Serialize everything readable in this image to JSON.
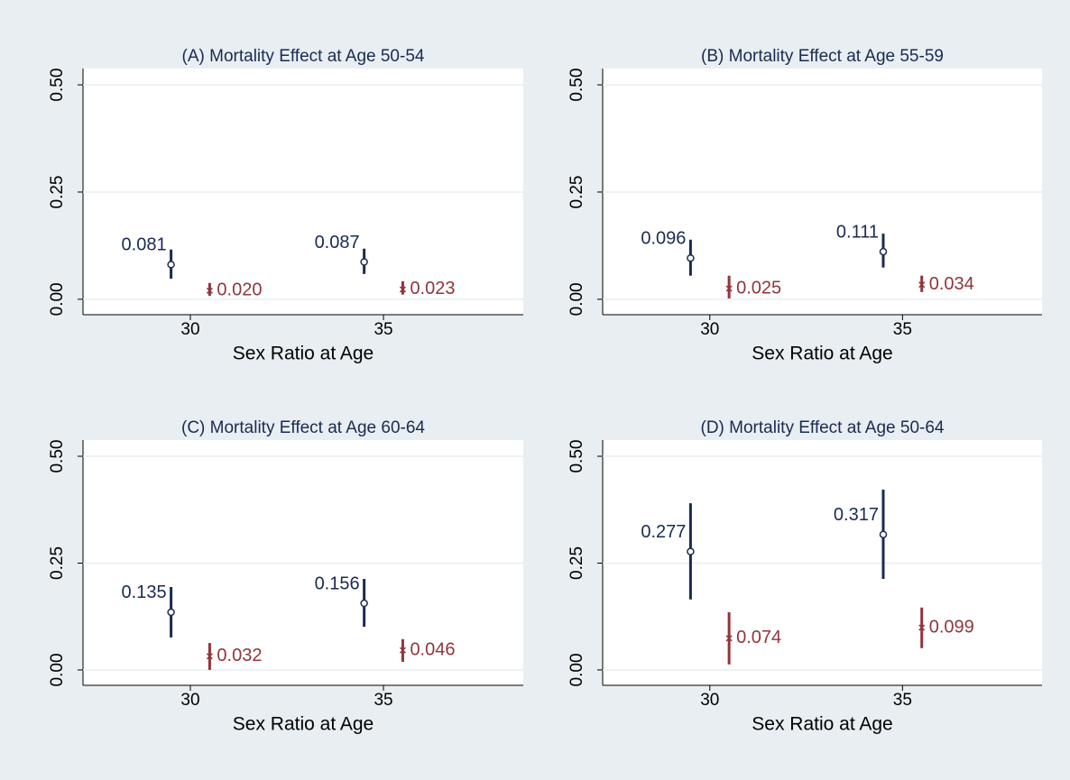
{
  "chart_data": [
    {
      "type": "errorbar",
      "title": "(A) Mortality Effect at Age 50-54",
      "x_label": "Sex Ratio at Age",
      "xlim": [
        27.22,
        38.62
      ],
      "xticks": [
        30,
        35
      ],
      "ylim": [
        -0.036,
        0.538
      ],
      "yticks": [
        {
          "value": 0,
          "label": "0.00"
        },
        {
          "value": 0.25,
          "label": "0.25"
        },
        {
          "value": 0.5,
          "label": "0.50"
        }
      ],
      "grid": true,
      "series": [
        {
          "color": "#1a2a52",
          "marker": "circle",
          "x": [
            29.5,
            34.5
          ],
          "values": [
            0.081,
            0.087
          ],
          "value_labels": [
            "0.081",
            "0.087"
          ],
          "lower": [
            0.048,
            0.059
          ],
          "upper": [
            0.116,
            0.118
          ]
        },
        {
          "color": "#90353b",
          "marker": "x",
          "x": [
            30.5,
            35.5
          ],
          "values": [
            0.02,
            0.023
          ],
          "value_labels": [
            "0.020",
            "0.023"
          ],
          "lower": [
            0.008,
            0.011
          ],
          "upper": [
            0.038,
            0.042
          ]
        }
      ]
    },
    {
      "type": "errorbar",
      "title": "(B) Mortality Effect at Age 55-59",
      "x_label": "Sex Ratio at Age",
      "xlim": [
        27.22,
        38.62
      ],
      "xticks": [
        30,
        35
      ],
      "ylim": [
        -0.036,
        0.538
      ],
      "yticks": [
        {
          "value": 0,
          "label": "0.00"
        },
        {
          "value": 0.25,
          "label": "0.25"
        },
        {
          "value": 0.5,
          "label": "0.50"
        }
      ],
      "grid": true,
      "series": [
        {
          "color": "#1a2a52",
          "marker": "circle",
          "x": [
            29.5,
            34.5
          ],
          "values": [
            0.096,
            0.111
          ],
          "value_labels": [
            "0.096",
            "0.111"
          ],
          "lower": [
            0.055,
            0.074
          ],
          "upper": [
            0.139,
            0.153
          ]
        },
        {
          "color": "#90353b",
          "marker": "x",
          "x": [
            30.5,
            35.5
          ],
          "values": [
            0.025,
            0.034
          ],
          "value_labels": [
            "0.025",
            "0.034"
          ],
          "lower": [
            0.002,
            0.017
          ],
          "upper": [
            0.055,
            0.055
          ]
        }
      ]
    },
    {
      "type": "errorbar",
      "title": "(C) Mortality Effect at Age 60-64",
      "x_label": "Sex Ratio at Age",
      "xlim": [
        27.22,
        38.62
      ],
      "xticks": [
        30,
        35
      ],
      "ylim": [
        -0.036,
        0.538
      ],
      "yticks": [
        {
          "value": 0,
          "label": "0.00"
        },
        {
          "value": 0.25,
          "label": "0.25"
        },
        {
          "value": 0.5,
          "label": "0.50"
        }
      ],
      "grid": true,
      "series": [
        {
          "color": "#1a2a52",
          "marker": "circle",
          "x": [
            29.5,
            34.5
          ],
          "values": [
            0.135,
            0.156
          ],
          "value_labels": [
            "0.135",
            "0.156"
          ],
          "lower": [
            0.076,
            0.101
          ],
          "upper": [
            0.194,
            0.213
          ]
        },
        {
          "color": "#90353b",
          "marker": "x",
          "x": [
            30.5,
            35.5
          ],
          "values": [
            0.032,
            0.046
          ],
          "value_labels": [
            "0.032",
            "0.046"
          ],
          "lower": [
            0.0,
            0.019
          ],
          "upper": [
            0.063,
            0.072
          ]
        }
      ]
    },
    {
      "type": "errorbar",
      "title": "(D) Mortality Effect at Age 50-64",
      "x_label": "Sex Ratio at Age",
      "xlim": [
        27.22,
        38.62
      ],
      "xticks": [
        30,
        35
      ],
      "ylim": [
        -0.036,
        0.538
      ],
      "yticks": [
        {
          "value": 0,
          "label": "0.00"
        },
        {
          "value": 0.25,
          "label": "0.25"
        },
        {
          "value": 0.5,
          "label": "0.50"
        }
      ],
      "grid": true,
      "series": [
        {
          "color": "#1a2a52",
          "marker": "circle",
          "x": [
            29.5,
            34.5
          ],
          "values": [
            0.277,
            0.317
          ],
          "value_labels": [
            "0.277",
            "0.317"
          ],
          "lower": [
            0.165,
            0.213
          ],
          "upper": [
            0.39,
            0.422
          ]
        },
        {
          "color": "#90353b",
          "marker": "x",
          "x": [
            30.5,
            35.5
          ],
          "values": [
            0.074,
            0.099
          ],
          "value_labels": [
            "0.074",
            "0.099"
          ],
          "lower": [
            0.013,
            0.051
          ],
          "upper": [
            0.135,
            0.146
          ]
        }
      ]
    }
  ]
}
